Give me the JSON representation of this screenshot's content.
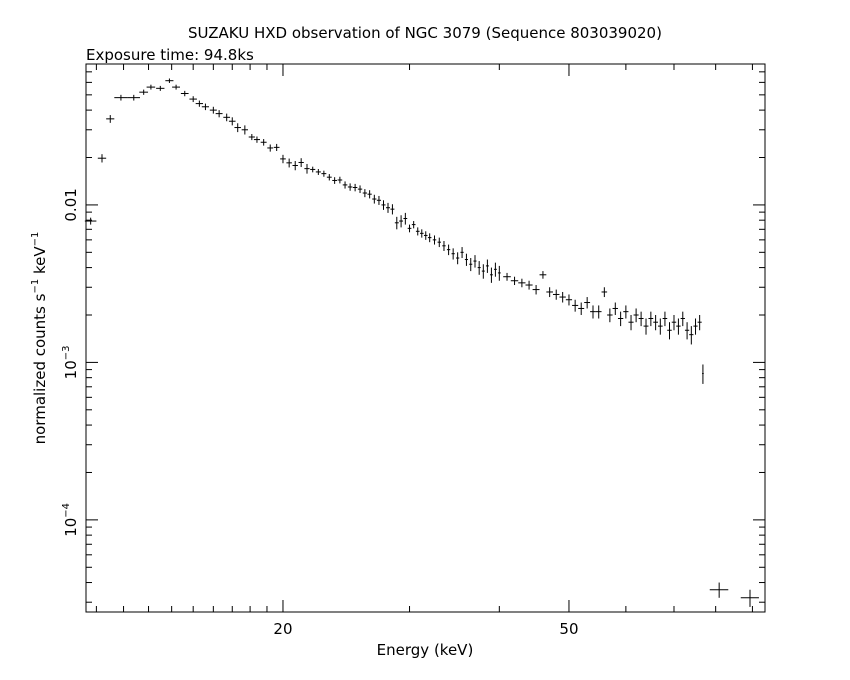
{
  "chart_data": {
    "type": "scatter",
    "title": "SUZAKU HXD observation of NGC 3079 (Sequence 803039020)",
    "subtitle": "Exposure time: 94.8ks",
    "x_label": "Energy (keV)",
    "y_label": [
      "normalized counts s",
      "−1",
      " keV",
      "−1"
    ],
    "log_x": true,
    "log_y": true,
    "color": "#000000",
    "xlim": [
      10.64,
      93.7
    ],
    "ylim": [
      2.6e-05,
      0.0785
    ],
    "xticks": [
      20,
      50
    ],
    "xminor": [
      11,
      12,
      13,
      14,
      15,
      16,
      17,
      18,
      19,
      30,
      40,
      60,
      70,
      80,
      90
    ],
    "yticks": [
      0.01,
      {
        "value": 0.001,
        "label": "10",
        "exponent": "−3"
      },
      {
        "value": 0.0001,
        "label": "10",
        "exponent": "−4"
      }
    ],
    "yminor": [
      3e-05,
      4e-05,
      5e-05,
      6e-05,
      7e-05,
      8e-05,
      9e-05,
      0.0002,
      0.0003,
      0.0004,
      0.0005,
      0.0006,
      0.0007,
      0.0008,
      0.0009,
      0.002,
      0.003,
      0.004,
      0.005,
      0.006,
      0.007,
      0.008,
      0.009,
      0.02,
      0.03,
      0.04,
      0.05,
      0.06,
      0.07
    ],
    "x": [
      10.8,
      11.2,
      11.5,
      11.9,
      12.4,
      12.8,
      13.1,
      13.5,
      13.9,
      14.2,
      14.6,
      15.0,
      15.3,
      15.6,
      16.0,
      16.3,
      16.7,
      17.0,
      17.3,
      17.7,
      18.1,
      18.4,
      18.8,
      19.2,
      19.6,
      20.0,
      20.4,
      20.8,
      21.2,
      21.6,
      22.0,
      22.4,
      22.8,
      23.2,
      23.6,
      24.0,
      24.4,
      24.8,
      25.2,
      25.6,
      26.0,
      26.4,
      26.8,
      27.2,
      27.6,
      28.0,
      28.4,
      28.8,
      29.2,
      29.6,
      30.0,
      30.4,
      30.8,
      31.2,
      31.6,
      32.0,
      32.5,
      33.0,
      33.5,
      34.0,
      34.5,
      35.0,
      35.5,
      36.0,
      36.5,
      37.0,
      37.5,
      38.0,
      38.5,
      39.0,
      39.5,
      40.0,
      41,
      42,
      43,
      44,
      45,
      46,
      47,
      48,
      49,
      50,
      51,
      52,
      53,
      54,
      55,
      56,
      57,
      58,
      59,
      60,
      61,
      62,
      63,
      64,
      65,
      66,
      67,
      68,
      69,
      70,
      71,
      72,
      73,
      74,
      75,
      76,
      76.8,
      80.9,
      89.3
    ],
    "values": [
      0.0079,
      0.0198,
      0.0352,
      0.048,
      0.048,
      0.052,
      0.056,
      0.055,
      0.0615,
      0.056,
      0.051,
      0.047,
      0.044,
      0.042,
      0.04,
      0.038,
      0.036,
      0.034,
      0.031,
      0.03,
      0.027,
      0.026,
      0.025,
      0.023,
      0.0232,
      0.0196,
      0.0185,
      0.0178,
      0.0186,
      0.017,
      0.0168,
      0.0162,
      0.0158,
      0.015,
      0.0143,
      0.0144,
      0.0134,
      0.013,
      0.0129,
      0.0126,
      0.0119,
      0.0117,
      0.0109,
      0.0107,
      0.01,
      0.0096,
      0.0094,
      0.0077,
      0.0079,
      0.0082,
      0.0071,
      0.0075,
      0.0068,
      0.0066,
      0.0064,
      0.0062,
      0.006,
      0.0058,
      0.0055,
      0.0052,
      0.0049,
      0.0046,
      0.005,
      0.0045,
      0.0042,
      0.0044,
      0.004,
      0.0038,
      0.0041,
      0.0036,
      0.0039,
      0.0037,
      0.0035,
      0.0033,
      0.0032,
      0.0031,
      0.0029,
      0.0036,
      0.0028,
      0.0027,
      0.0026,
      0.0025,
      0.0023,
      0.0022,
      0.0024,
      0.0021,
      0.0021,
      0.0028,
      0.002,
      0.0022,
      0.0019,
      0.0021,
      0.0018,
      0.002,
      0.0019,
      0.0017,
      0.0019,
      0.0018,
      0.0017,
      0.0019,
      0.0016,
      0.0018,
      0.0017,
      0.0019,
      0.0016,
      0.0015,
      0.0017,
      0.0018,
      0.00085,
      3.6e-05,
      3.2e-05
    ],
    "xerr": [
      0.2,
      0.15,
      0.15,
      0.25,
      0.25,
      0.18,
      0.18,
      0.18,
      0.18,
      0.18,
      0.18,
      0.18,
      0.18,
      0.18,
      0.18,
      0.18,
      0.18,
      0.18,
      0.18,
      0.18,
      0.18,
      0.18,
      0.18,
      0.18,
      0.18,
      0.18,
      0.18,
      0.18,
      0.18,
      0.18,
      0.18,
      0.18,
      0.18,
      0.18,
      0.18,
      0.18,
      0.18,
      0.18,
      0.18,
      0.18,
      0.18,
      0.18,
      0.18,
      0.18,
      0.18,
      0.18,
      0.18,
      0.18,
      0.18,
      0.18,
      0.18,
      0.18,
      0.18,
      0.18,
      0.18,
      0.18,
      0.18,
      0.18,
      0.18,
      0.18,
      0.18,
      0.18,
      0.18,
      0.18,
      0.18,
      0.18,
      0.18,
      0.18,
      0.18,
      0.18,
      0.18,
      0.18,
      0.5,
      0.5,
      0.5,
      0.5,
      0.5,
      0.5,
      0.5,
      0.5,
      0.5,
      0.5,
      0.5,
      0.5,
      0.5,
      0.5,
      0.5,
      0.5,
      0.5,
      0.5,
      0.5,
      0.5,
      0.5,
      0.5,
      0.5,
      0.5,
      0.5,
      0.5,
      0.5,
      0.5,
      0.5,
      0.5,
      0.5,
      0.5,
      0.5,
      0.5,
      0.5,
      0.5,
      0.2,
      2.4,
      2.6
    ],
    "yerr": [
      0.0004,
      0.0012,
      0.002,
      0.002,
      0.002,
      0.002,
      0.002,
      0.002,
      0.002,
      0.002,
      0.002,
      0.002,
      0.002,
      0.002,
      0.002,
      0.002,
      0.002,
      0.002,
      0.002,
      0.002,
      0.0012,
      0.0012,
      0.0012,
      0.0012,
      0.0012,
      0.0012,
      0.0012,
      0.0012,
      0.0012,
      0.0012,
      0.0007,
      0.0007,
      0.0007,
      0.0007,
      0.0007,
      0.0007,
      0.0007,
      0.0007,
      0.0007,
      0.0007,
      0.0007,
      0.0007,
      0.0007,
      0.0007,
      0.0007,
      0.0007,
      0.0007,
      0.0007,
      0.0007,
      0.0007,
      0.0004,
      0.0004,
      0.0004,
      0.0004,
      0.0004,
      0.0004,
      0.0004,
      0.0004,
      0.0004,
      0.0004,
      0.0004,
      0.0004,
      0.0004,
      0.0004,
      0.0004,
      0.0004,
      0.0004,
      0.0004,
      0.0004,
      0.0004,
      0.0004,
      0.0004,
      0.0002,
      0.0002,
      0.0002,
      0.0002,
      0.0002,
      0.0002,
      0.0002,
      0.0002,
      0.0002,
      0.0002,
      0.0002,
      0.0002,
      0.0002,
      0.0002,
      0.0002,
      0.0002,
      0.0002,
      0.0002,
      0.0002,
      0.0002,
      0.0002,
      0.0002,
      0.0002,
      0.0002,
      0.0002,
      0.0002,
      0.0002,
      0.0002,
      0.0002,
      0.0002,
      0.0002,
      0.0002,
      0.0002,
      0.0002,
      0.0002,
      0.0002,
      0.00012,
      4e-06,
      4e-06
    ]
  }
}
